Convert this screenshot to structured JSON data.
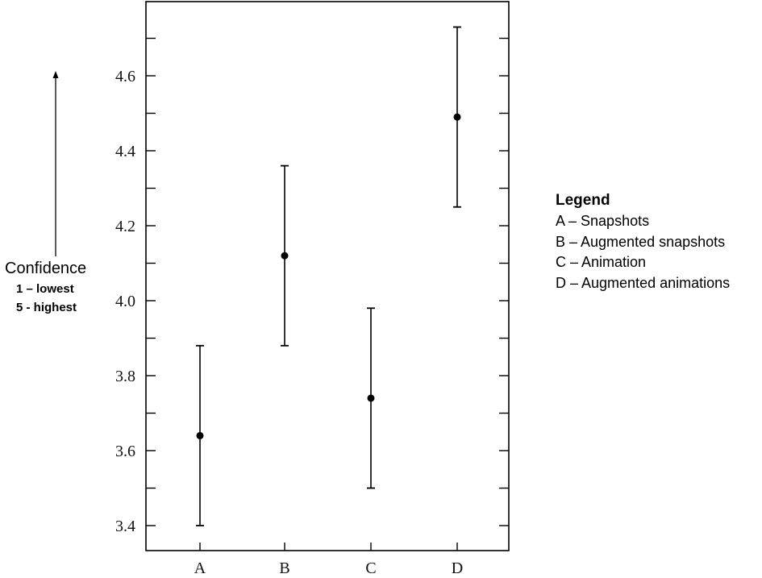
{
  "chart_data": {
    "type": "scatter",
    "categories": [
      "A",
      "B",
      "C",
      "D"
    ],
    "means": [
      3.64,
      4.12,
      3.74,
      4.49
    ],
    "lower": [
      3.4,
      3.88,
      3.5,
      4.25
    ],
    "upper": [
      3.88,
      4.36,
      3.98,
      4.73
    ],
    "y_ticks": [
      "3.4",
      "3.6",
      "3.8",
      "4.0",
      "4.2",
      "4.4",
      "4.6"
    ],
    "ylim": [
      3.35,
      4.8
    ],
    "grid": false,
    "ylabel": {
      "main": "Confidence",
      "line1": "1 – lowest",
      "line2": "5 - highest"
    },
    "legend": {
      "title": "Legend",
      "position": "right",
      "items": [
        "A – Snapshots",
        "B – Augmented snapshots",
        "C – Animation",
        "D – Augmented animations"
      ]
    },
    "colors": {
      "marks": "#000000",
      "frame": "#000000"
    }
  }
}
